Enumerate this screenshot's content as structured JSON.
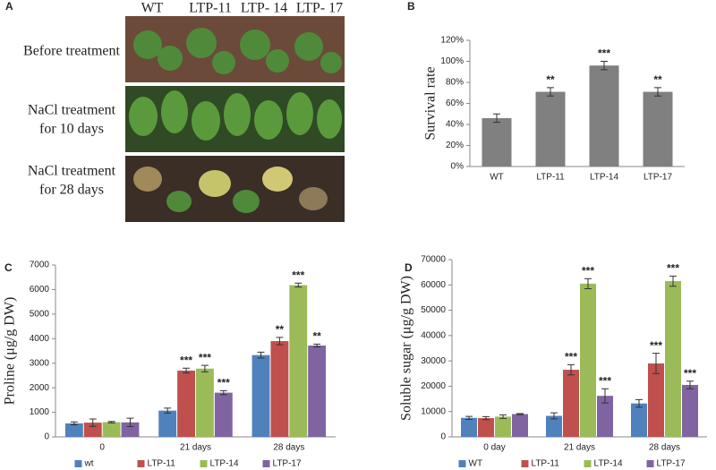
{
  "panel_a": {
    "label": "A",
    "columns": [
      "WT",
      "LTP-11",
      "LTP- 14",
      "LTP- 17"
    ],
    "rows": [
      [
        "Before treatment"
      ],
      [
        "NaCl treatment",
        "for 10 days"
      ],
      [
        "NaCl treatment",
        "for 28 days"
      ]
    ]
  },
  "chart_data": [
    {
      "type": "bar",
      "panel": "B",
      "ylabel": "Survival rate",
      "categories": [
        "WT",
        "LTP-11",
        "LTP-14",
        "LTP-17"
      ],
      "values": [
        46,
        71,
        96,
        71
      ],
      "errors": [
        4,
        4,
        4,
        4
      ],
      "significance": [
        null,
        "**",
        "***",
        "**"
      ],
      "color": "#808080",
      "ylim": [
        0,
        120
      ],
      "yticks": [
        {
          "value": 0,
          "label": "0%"
        },
        {
          "value": 20,
          "label": "20%"
        },
        {
          "value": 40,
          "label": "40%"
        },
        {
          "value": 60,
          "label": "60%"
        },
        {
          "value": 80,
          "label": "80%"
        },
        {
          "value": 100,
          "label": "100%"
        },
        {
          "value": 120,
          "label": "120%"
        }
      ],
      "grid": false
    },
    {
      "type": "bar",
      "panel": "C",
      "ylabel": "Proline (μg/g DW)",
      "categories": [
        "0",
        "21 days",
        "28 days"
      ],
      "series": [
        {
          "name": "wt",
          "color": "#4f81bd",
          "values": [
            550,
            1070,
            3330
          ],
          "errors": [
            60,
            100,
            120
          ],
          "significance": [
            null,
            null,
            null
          ]
        },
        {
          "name": "LTP-11",
          "color": "#c0504d",
          "values": [
            580,
            2700,
            3900
          ],
          "errors": [
            150,
            100,
            150
          ],
          "significance": [
            null,
            "***",
            "**"
          ]
        },
        {
          "name": "LTP-14",
          "color": "#9bbb59",
          "values": [
            600,
            2780,
            6180
          ],
          "errors": [
            30,
            130,
            80
          ],
          "significance": [
            null,
            "***",
            "***"
          ]
        },
        {
          "name": "LTP-17",
          "color": "#8064a2",
          "values": [
            590,
            1800,
            3720
          ],
          "errors": [
            170,
            80,
            60
          ],
          "significance": [
            null,
            "***",
            "**"
          ]
        }
      ],
      "ylim": [
        0,
        7000
      ],
      "yticks": [
        0,
        1000,
        2000,
        3000,
        4000,
        5000,
        6000,
        7000
      ],
      "grid": false
    },
    {
      "type": "bar",
      "panel": "D",
      "ylabel": "Soluble sugar (μg/g DW)",
      "categories": [
        "0 day",
        "21 days",
        "28 days"
      ],
      "series": [
        {
          "name": "WT",
          "color": "#4f81bd",
          "values": [
            7500,
            8300,
            13200
          ],
          "errors": [
            600,
            1200,
            1500
          ],
          "significance": [
            null,
            null,
            null
          ]
        },
        {
          "name": "LTP-11",
          "color": "#c0504d",
          "values": [
            7400,
            26500,
            29000
          ],
          "errors": [
            600,
            2000,
            4000
          ],
          "significance": [
            null,
            "***",
            "***"
          ]
        },
        {
          "name": "LTP-14",
          "color": "#9bbb59",
          "values": [
            8000,
            60500,
            61500
          ],
          "errors": [
            700,
            2000,
            2000
          ],
          "significance": [
            null,
            "***",
            "***"
          ]
        },
        {
          "name": "LTP-17",
          "color": "#8064a2",
          "values": [
            9000,
            16200,
            20500
          ],
          "errors": [
            200,
            2800,
            1500
          ],
          "significance": [
            null,
            "***",
            "***"
          ]
        }
      ],
      "ylim": [
        0,
        70000
      ],
      "yticks": [
        0,
        10000,
        20000,
        30000,
        40000,
        50000,
        60000,
        70000
      ],
      "grid": false
    }
  ]
}
